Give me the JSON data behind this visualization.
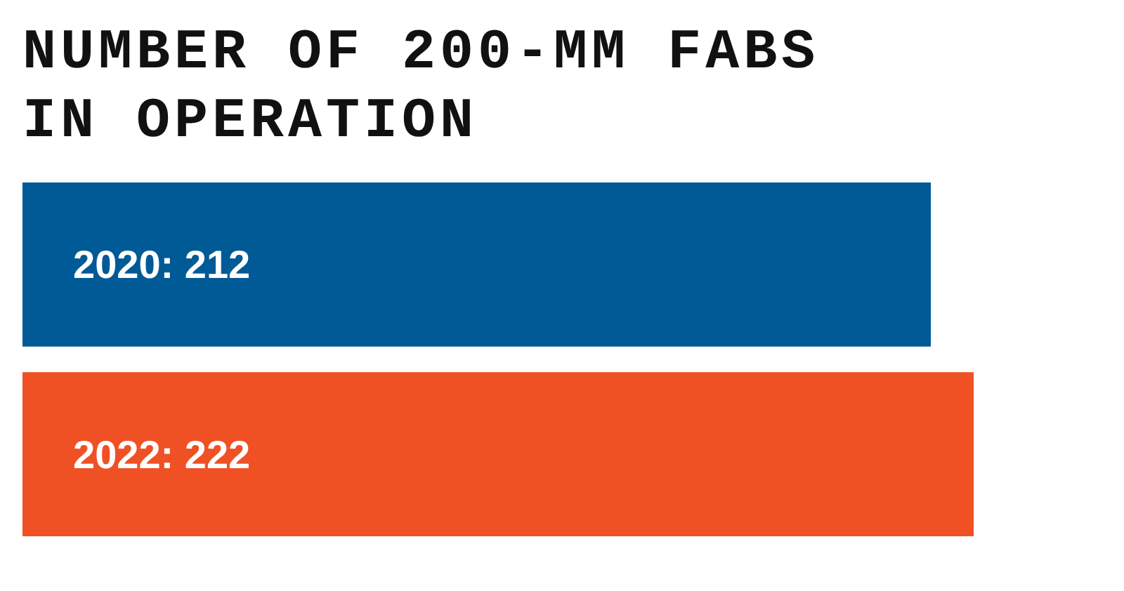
{
  "chart_data": {
    "type": "bar",
    "orientation": "horizontal",
    "title": "NUMBER OF 200-MM FABS IN OPERATION",
    "categories": [
      null,
      null
    ],
    "values": [
      212,
      222
    ],
    "colors": [
      "#005a96",
      "#ef5124"
    ],
    "value_labels": [
      "2020: 212",
      "2022: 222"
    ],
    "xlim": [
      0,
      222
    ],
    "tick_labels": false
  }
}
